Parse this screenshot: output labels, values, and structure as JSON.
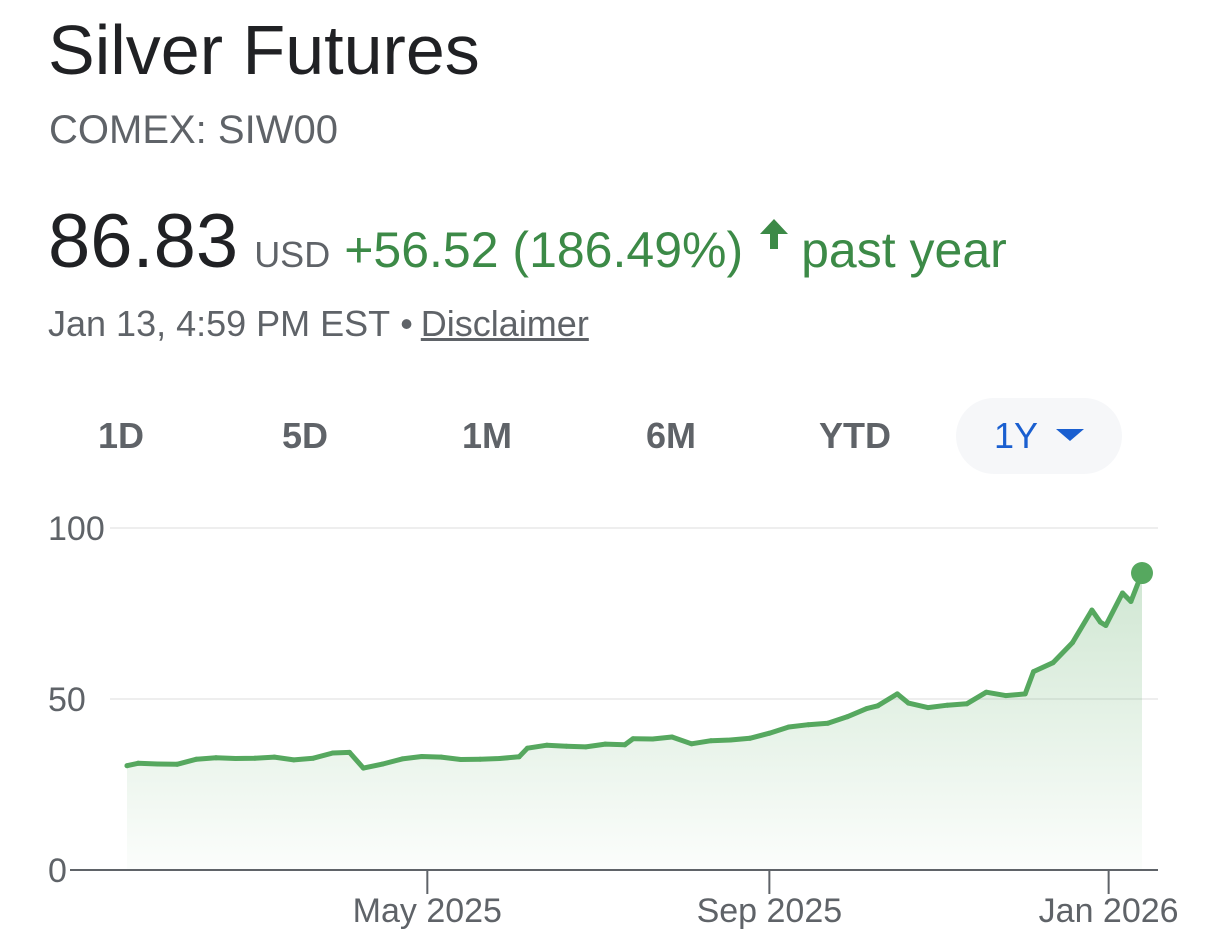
{
  "header": {
    "title": "Silver Futures",
    "exchange": "COMEX: SIW00"
  },
  "quote": {
    "price": "86.83",
    "currency": "USD",
    "change": "+56.52 (186.49%)",
    "arrow_icon": "arrow-up-icon",
    "period": "past year",
    "timestamp": "Jan 13, 4:59 PM EST",
    "separator": "•",
    "disclaimer": "Disclaimer"
  },
  "ranges": [
    {
      "label": "1D",
      "active": false
    },
    {
      "label": "5D",
      "active": false
    },
    {
      "label": "1M",
      "active": false
    },
    {
      "label": "6M",
      "active": false
    },
    {
      "label": "YTD",
      "active": false
    },
    {
      "label": "1Y",
      "active": true
    }
  ],
  "colors": {
    "line": "#56a85f",
    "up": "#3c8a47",
    "accent": "#1a5fd0",
    "grid": "#eeeeee",
    "axis": "#5f6368"
  },
  "chart_data": {
    "type": "area",
    "title": "",
    "xlabel": "",
    "ylabel": "",
    "ylim": [
      0,
      100
    ],
    "yticks": [
      0,
      50,
      100
    ],
    "xticks": [
      {
        "label": "May 2025",
        "date": "2025-05-01"
      },
      {
        "label": "Sep 2025",
        "date": "2025-09-01"
      },
      {
        "label": "Jan 2026",
        "date": "2026-01-01"
      }
    ],
    "x_range": [
      "2025-01-13",
      "2026-01-13"
    ],
    "series": [
      {
        "points": [
          [
            "2025-01-13",
            30.5
          ],
          [
            "2025-01-17",
            31.2
          ],
          [
            "2025-01-24",
            31.0
          ],
          [
            "2025-01-31",
            30.9
          ],
          [
            "2025-02-07",
            32.4
          ],
          [
            "2025-02-14",
            32.8
          ],
          [
            "2025-02-21",
            32.6
          ],
          [
            "2025-02-28",
            32.7
          ],
          [
            "2025-03-07",
            33.0
          ],
          [
            "2025-03-14",
            32.2
          ],
          [
            "2025-03-21",
            32.7
          ],
          [
            "2025-03-28",
            34.2
          ],
          [
            "2025-04-03",
            34.4
          ],
          [
            "2025-04-08",
            29.8
          ],
          [
            "2025-04-15",
            31.0
          ],
          [
            "2025-04-22",
            32.5
          ],
          [
            "2025-04-29",
            33.2
          ],
          [
            "2025-05-06",
            33.0
          ],
          [
            "2025-05-13",
            32.3
          ],
          [
            "2025-05-20",
            32.4
          ],
          [
            "2025-05-27",
            32.6
          ],
          [
            "2025-06-03",
            33.1
          ],
          [
            "2025-06-06",
            35.6
          ],
          [
            "2025-06-13",
            36.5
          ],
          [
            "2025-06-20",
            36.2
          ],
          [
            "2025-06-27",
            36.0
          ],
          [
            "2025-07-04",
            36.8
          ],
          [
            "2025-07-11",
            36.6
          ],
          [
            "2025-07-14",
            38.4
          ],
          [
            "2025-07-21",
            38.3
          ],
          [
            "2025-07-28",
            38.9
          ],
          [
            "2025-08-04",
            36.9
          ],
          [
            "2025-08-11",
            37.8
          ],
          [
            "2025-08-18",
            38.0
          ],
          [
            "2025-08-25",
            38.5
          ],
          [
            "2025-09-01",
            40.0
          ],
          [
            "2025-09-08",
            41.8
          ],
          [
            "2025-09-15",
            42.5
          ],
          [
            "2025-09-22",
            42.9
          ],
          [
            "2025-09-29",
            44.8
          ],
          [
            "2025-10-06",
            47.2
          ],
          [
            "2025-10-10",
            48.0
          ],
          [
            "2025-10-17",
            51.5
          ],
          [
            "2025-10-21",
            48.8
          ],
          [
            "2025-10-28",
            47.5
          ],
          [
            "2025-11-04",
            48.2
          ],
          [
            "2025-11-11",
            48.6
          ],
          [
            "2025-11-18",
            52.0
          ],
          [
            "2025-11-25",
            51.0
          ],
          [
            "2025-12-02",
            51.5
          ],
          [
            "2025-12-05",
            58.0
          ],
          [
            "2025-12-12",
            60.6
          ],
          [
            "2025-12-19",
            66.5
          ],
          [
            "2025-12-26",
            76.0
          ],
          [
            "2025-12-29",
            72.5
          ],
          [
            "2025-12-31",
            71.5
          ],
          [
            "2026-01-06",
            81.0
          ],
          [
            "2026-01-09",
            78.5
          ],
          [
            "2026-01-13",
            86.83
          ]
        ]
      }
    ]
  }
}
